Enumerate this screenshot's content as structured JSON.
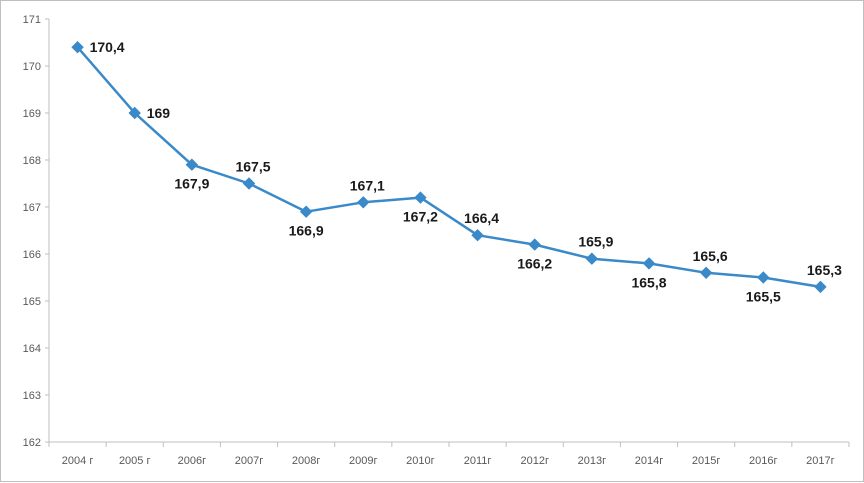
{
  "chart_data": {
    "type": "line",
    "categories": [
      "2004 г",
      "2005 г",
      "2006г",
      "2007г",
      "2008г",
      "2009г",
      "2010г",
      "2011г",
      "2012г",
      "2013г",
      "2014г",
      "2015г",
      "2016г",
      "2017г"
    ],
    "series": [
      {
        "values": [
          170.4,
          169,
          167.9,
          167.5,
          166.9,
          167.1,
          167.2,
          166.4,
          166.2,
          165.9,
          165.8,
          165.6,
          165.5,
          165.3
        ],
        "labels": [
          "170,4",
          "169",
          "167,9",
          "167,5",
          "166,9",
          "167,1",
          "167,2",
          "166,4",
          "166,2",
          "165,9",
          "165,8",
          "165,6",
          "165,5",
          "165,3"
        ],
        "label_positions": [
          "right",
          "right",
          "below",
          "above",
          "below",
          "above",
          "below",
          "above",
          "below",
          "above",
          "below",
          "above",
          "below",
          "above"
        ],
        "color": "#3a89c9",
        "marker": "diamond"
      }
    ],
    "yticks": [
      "171",
      "170",
      "169",
      "168",
      "167",
      "166",
      "165",
      "164",
      "163",
      "162"
    ],
    "ylim": [
      162,
      171
    ],
    "grid": false,
    "legend": "none"
  }
}
